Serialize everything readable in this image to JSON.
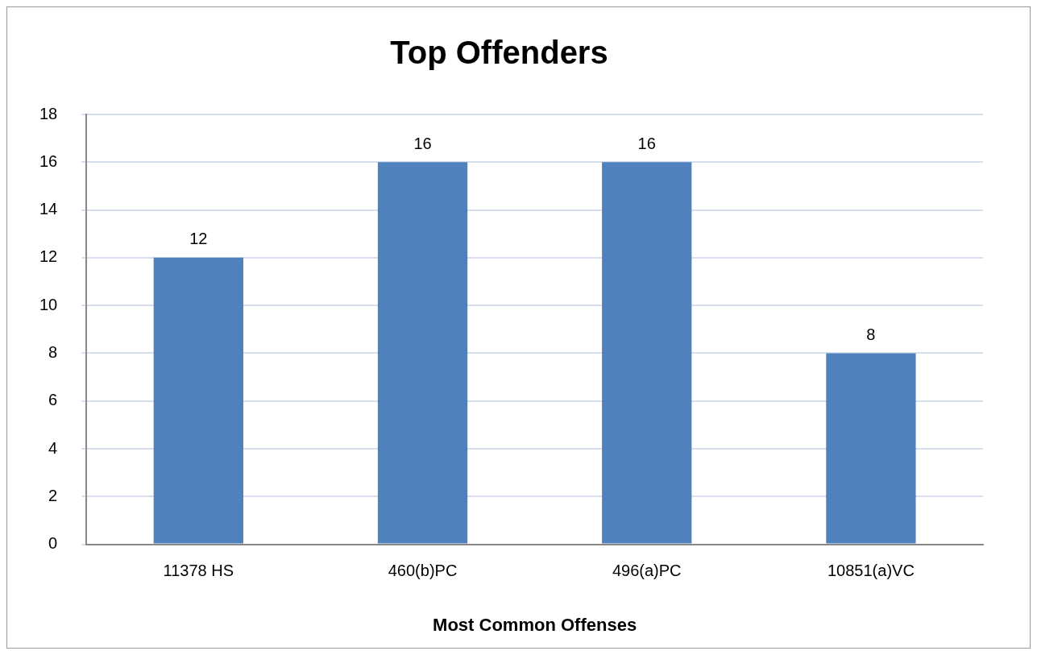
{
  "chart_data": {
    "type": "bar",
    "title": "Top Offenders",
    "xlabel": "Most Common Offenses",
    "categories": [
      "11378 HS",
      "460(b)PC",
      "496(a)PC",
      "10851(a)VC"
    ],
    "values": [
      12,
      16,
      16,
      8
    ],
    "color": "#4f81bd",
    "ylim": [
      0,
      18
    ],
    "yticks": [
      0,
      2,
      4,
      6,
      8,
      10,
      12,
      14,
      16,
      18
    ],
    "grid": "y",
    "data_labels": true,
    "legend": false
  }
}
